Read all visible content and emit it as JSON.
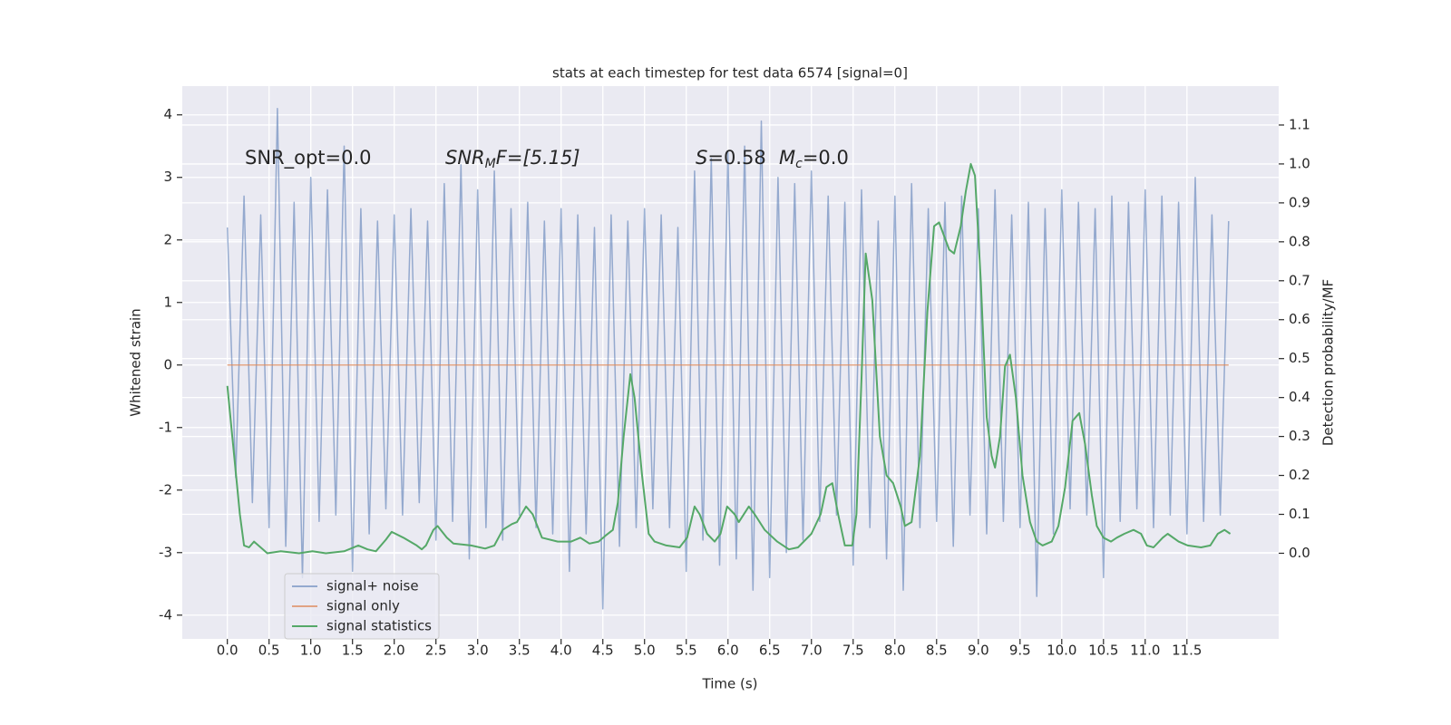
{
  "chart_data": {
    "type": "line",
    "title": "stats at each timestep for test data 6574 [signal=0]",
    "xlabel": "Time (s)",
    "ylabel": "Whitened strain",
    "y2label": "Detection probability/MF",
    "annotations": [
      [
        "SNR_opt=0.0"
      ],
      [
        "SNR",
        "M",
        "F=[5.15]"
      ],
      [
        "S",
        "=0.58"
      ],
      [
        "M",
        "c",
        "=0.0"
      ]
    ],
    "xlim": [
      -0.54,
      12.6
    ],
    "xticks": [
      {
        "value": 0,
        "label": "0.0"
      },
      0.5,
      {
        "value": 1,
        "label": "1.0"
      },
      1.5,
      {
        "value": 2,
        "label": "2.0"
      },
      2.5,
      {
        "value": 3,
        "label": "3.0"
      },
      3.5,
      {
        "value": 4,
        "label": "4.0"
      },
      4.5,
      {
        "value": 5,
        "label": "5.0"
      },
      5.5,
      {
        "value": 6,
        "label": "6.0"
      },
      6.5,
      {
        "value": 7,
        "label": "7.0"
      },
      7.5,
      {
        "value": 8,
        "label": "8.0"
      },
      8.5,
      {
        "value": 9,
        "label": "9.0"
      },
      9.5,
      {
        "value": 10,
        "label": "10.0"
      },
      10.5,
      {
        "value": 11,
        "label": "11.0"
      },
      11.5
    ],
    "ylim": [
      -4.38,
      4.46
    ],
    "yticks": [
      -4,
      -3,
      -2,
      -1,
      0,
      1,
      2,
      3,
      4
    ],
    "y2lim": [
      -0.22,
      1.2
    ],
    "y2ticks": [
      {
        "value": 0,
        "label": "0.0"
      },
      0.1,
      0.2,
      0.3,
      0.4,
      0.5,
      0.6,
      0.7,
      0.8,
      0.9,
      {
        "value": 1,
        "label": "1.0"
      },
      1.1
    ],
    "grid": true,
    "legend_loc": "lower left",
    "series": [
      {
        "name": "signal+ noise",
        "color": "#4c72b0",
        "x": [
          0,
          0.1,
          0.2,
          0.3,
          0.4,
          0.5,
          0.6,
          0.7,
          0.8,
          0.9,
          1,
          1.1,
          1.2,
          1.3,
          1.4,
          1.5,
          1.6,
          1.7,
          1.8,
          1.9,
          2,
          2.1,
          2.2,
          2.3,
          2.4,
          2.5,
          2.6,
          2.7,
          2.8,
          2.9,
          3,
          3.1,
          3.2,
          3.3,
          3.4,
          3.5,
          3.6,
          3.7,
          3.8,
          3.9,
          4,
          4.1,
          4.2,
          4.3,
          4.4,
          4.5,
          4.6,
          4.7,
          4.8,
          4.9,
          5,
          5.1,
          5.2,
          5.3,
          5.4,
          5.5,
          5.6,
          5.7,
          5.8,
          5.9,
          6,
          6.1,
          6.2,
          6.3,
          6.4,
          6.5,
          6.6,
          6.7,
          6.8,
          6.9,
          7,
          7.1,
          7.2,
          7.3,
          7.4,
          7.5,
          7.6,
          7.7,
          7.8,
          7.9,
          8,
          8.1,
          8.2,
          8.3,
          8.4,
          8.5,
          8.6,
          8.7,
          8.8,
          8.9,
          9,
          9.1,
          9.2,
          9.3,
          9.4,
          9.5,
          9.6,
          9.7,
          9.8,
          9.9,
          10,
          10.1,
          10.2,
          10.3,
          10.4,
          10.5,
          10.6,
          10.7,
          10.8,
          10.9,
          11,
          11.1,
          11.2,
          11.3,
          11.4,
          11.5,
          11.6,
          11.7,
          11.8,
          11.9,
          12
        ],
        "values": [
          2.2,
          -1.8,
          2.7,
          -2.2,
          2.4,
          -2.6,
          4.1,
          -2.9,
          2.6,
          -3.4,
          3.0,
          -2.5,
          2.8,
          -2.4,
          3.5,
          -3.3,
          2.5,
          -2.7,
          2.3,
          -2.3,
          2.4,
          -2.4,
          2.5,
          -2.2,
          2.3,
          -2.8,
          2.9,
          -2.5,
          3.2,
          -3.1,
          2.8,
          -2.6,
          3.1,
          -2.8,
          2.5,
          -2.4,
          2.6,
          -2.6,
          2.3,
          -2.7,
          2.5,
          -3.3,
          2.4,
          -2.7,
          2.2,
          -3.9,
          2.4,
          -2.9,
          2.3,
          -2.6,
          2.5,
          -2.3,
          2.4,
          -2.6,
          2.2,
          -3.3,
          3.1,
          -2.8,
          3.3,
          -3.2,
          3.4,
          -3.1,
          3.5,
          -3.6,
          3.9,
          -3.4,
          3.0,
          -3.0,
          2.9,
          -2.8,
          3.1,
          -2.5,
          2.7,
          -2.4,
          2.6,
          -3.2,
          2.8,
          -2.6,
          2.3,
          -3.1,
          2.7,
          -3.6,
          2.9,
          -2.6,
          2.5,
          -2.5,
          2.6,
          -2.9,
          2.7,
          -2.4,
          2.5,
          -2.7,
          2.8,
          -2.5,
          2.4,
          -2.6,
          2.6,
          -3.7,
          2.5,
          -2.7,
          2.8,
          -2.3,
          2.6,
          -2.4,
          2.5,
          -3.4,
          2.7,
          -2.5,
          2.6,
          -2.3,
          2.8,
          -2.6,
          2.7,
          -2.4,
          2.6,
          -2.7,
          3.0,
          -2.5,
          2.4,
          -2.4,
          2.3
        ]
      },
      {
        "name": "signal only",
        "color": "#dd8452",
        "x": [
          0,
          12
        ],
        "values": [
          0,
          0
        ]
      },
      {
        "name": "signal statistics",
        "color": "#55a868",
        "axis": "y2",
        "x": [
          0,
          0.15,
          0.2,
          0.26,
          0.32,
          0.48,
          0.64,
          0.86,
          1.02,
          1.18,
          1.4,
          1.57,
          1.68,
          1.78,
          1.9,
          1.97,
          2.11,
          2.27,
          2.33,
          2.38,
          2.47,
          2.52,
          2.63,
          2.71,
          2.92,
          3.09,
          3.2,
          3.3,
          3.41,
          3.47,
          3.58,
          3.66,
          3.77,
          3.96,
          4.12,
          4.23,
          4.34,
          4.45,
          4.53,
          4.62,
          4.68,
          4.75,
          4.83,
          4.88,
          4.97,
          5.05,
          5.12,
          5.26,
          5.42,
          5.51,
          5.6,
          5.66,
          5.75,
          5.84,
          5.91,
          5.99,
          6.08,
          6.13,
          6.25,
          6.32,
          6.44,
          6.59,
          6.73,
          6.84,
          7.0,
          7.11,
          7.18,
          7.25,
          7.32,
          7.4,
          7.49,
          7.54,
          7.6,
          7.65,
          7.73,
          7.82,
          7.9,
          7.98,
          8.07,
          8.12,
          8.2,
          8.3,
          8.39,
          8.47,
          8.53,
          8.65,
          8.71,
          8.79,
          8.85,
          8.91,
          8.96,
          9.03,
          9.1,
          9.16,
          9.2,
          9.26,
          9.32,
          9.38,
          9.45,
          9.53,
          9.62,
          9.7,
          9.77,
          9.88,
          9.96,
          10.04,
          10.13,
          10.21,
          10.28,
          10.36,
          10.42,
          10.5,
          10.59,
          10.66,
          10.75,
          10.86,
          10.95,
          11.02,
          11.1,
          11.21,
          11.27,
          11.4,
          11.51,
          11.67,
          11.78,
          11.87,
          11.95,
          12.02
        ],
        "values": [
          0.43,
          0.1,
          0.02,
          0.015,
          0.03,
          0.0,
          0.005,
          0.0,
          0.005,
          0.0,
          0.005,
          0.02,
          0.01,
          0.005,
          0.035,
          0.055,
          0.04,
          0.02,
          0.01,
          0.02,
          0.06,
          0.07,
          0.04,
          0.025,
          0.02,
          0.012,
          0.02,
          0.06,
          0.075,
          0.08,
          0.12,
          0.1,
          0.04,
          0.03,
          0.03,
          0.04,
          0.025,
          0.03,
          0.045,
          0.06,
          0.13,
          0.3,
          0.46,
          0.4,
          0.2,
          0.05,
          0.03,
          0.02,
          0.015,
          0.04,
          0.12,
          0.1,
          0.05,
          0.03,
          0.05,
          0.12,
          0.1,
          0.08,
          0.12,
          0.1,
          0.06,
          0.03,
          0.01,
          0.015,
          0.05,
          0.1,
          0.17,
          0.18,
          0.1,
          0.02,
          0.02,
          0.1,
          0.45,
          0.77,
          0.65,
          0.3,
          0.2,
          0.18,
          0.12,
          0.07,
          0.08,
          0.25,
          0.62,
          0.84,
          0.85,
          0.78,
          0.77,
          0.84,
          0.93,
          1.0,
          0.97,
          0.7,
          0.35,
          0.25,
          0.22,
          0.3,
          0.48,
          0.51,
          0.4,
          0.2,
          0.08,
          0.03,
          0.02,
          0.03,
          0.07,
          0.17,
          0.34,
          0.36,
          0.28,
          0.15,
          0.07,
          0.04,
          0.03,
          0.04,
          0.05,
          0.06,
          0.05,
          0.02,
          0.015,
          0.04,
          0.05,
          0.03,
          0.02,
          0.015,
          0.02,
          0.05,
          0.06,
          0.05
        ]
      }
    ]
  }
}
